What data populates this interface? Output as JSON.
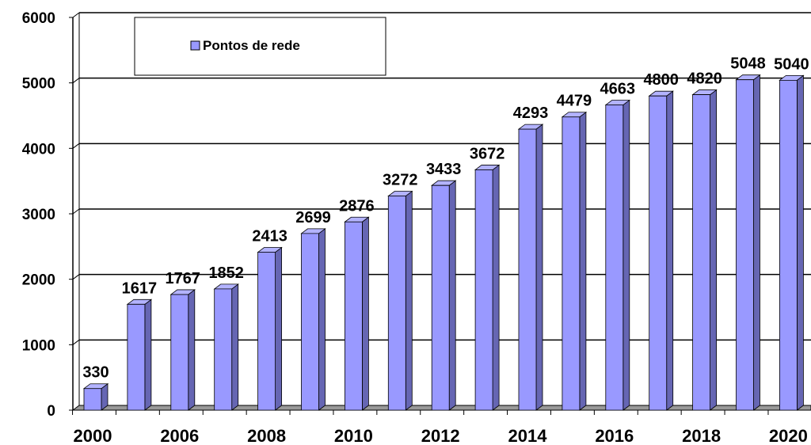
{
  "chart_data": {
    "type": "bar",
    "categories": [
      "2000",
      null,
      "2006",
      null,
      "2008",
      null,
      "2010",
      null,
      "2012",
      null,
      "2014",
      null,
      "2016",
      null,
      "2018",
      null,
      "2020"
    ],
    "series": [
      {
        "name": "Pontos de rede",
        "color": "#9999ff",
        "values": [
          330,
          1617,
          1767,
          1852,
          2413,
          2699,
          2876,
          3272,
          3433,
          3672,
          4293,
          4479,
          4663,
          4800,
          4820,
          5048,
          5040
        ]
      }
    ],
    "ylim": [
      0,
      6000
    ],
    "yticks": [
      0,
      1000,
      2000,
      3000,
      4000,
      5000,
      6000
    ],
    "grid": true,
    "legend": "top-left"
  }
}
